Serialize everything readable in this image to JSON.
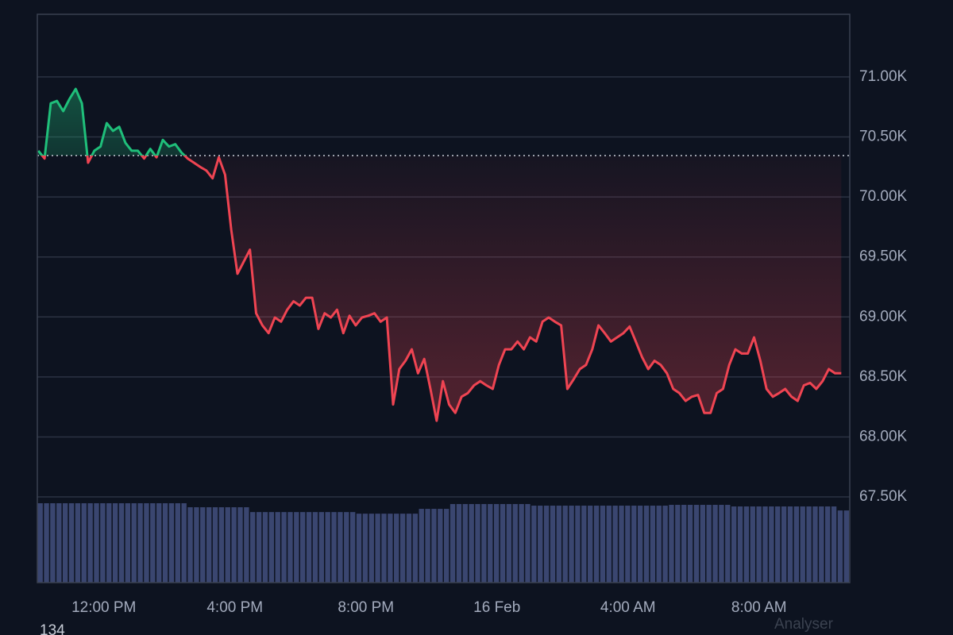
{
  "chart_data": {
    "type": "baseline-line",
    "x": [
      10,
      10.19,
      10.38,
      10.57,
      10.76,
      10.95,
      11.14,
      11.33,
      11.52,
      11.71,
      11.9,
      12.09,
      12.28,
      12.47,
      12.66,
      12.85,
      13.04,
      13.23,
      13.42,
      13.61,
      13.8,
      13.99,
      14.18,
      14.37,
      14.56,
      14.75,
      14.94,
      15.13,
      15.32,
      15.51,
      15.7,
      15.89,
      16.08,
      16.27,
      16.46,
      16.65,
      16.84,
      17.03,
      17.22,
      17.41,
      17.6,
      17.79,
      17.98,
      18.17,
      18.36,
      18.55,
      18.74,
      18.93,
      19.12,
      19.31,
      19.5,
      19.69,
      19.88,
      20.07,
      20.26,
      20.45,
      20.64,
      20.83,
      21.02,
      21.21,
      21.4,
      21.59,
      21.78,
      21.97,
      22.16,
      22.35,
      22.54,
      22.73,
      22.92,
      23.11,
      23.3,
      23.49,
      23.68,
      23.87,
      24.06,
      24.25,
      24.44,
      24.63,
      24.82,
      25.01,
      25.2,
      25.39,
      25.58,
      25.77,
      25.96,
      26.15,
      26.34,
      26.53,
      26.72,
      26.91,
      27.1,
      27.29,
      27.48,
      27.67,
      27.86,
      28.05,
      28.24,
      28.43,
      28.62,
      28.81,
      29.0,
      29.19,
      29.38,
      29.57,
      29.76,
      29.95,
      30.14,
      30.33,
      30.52,
      30.71,
      30.9,
      31.09,
      31.28,
      31.47,
      31.66,
      31.85,
      32.04,
      32.23,
      32.42,
      32.61,
      32.8,
      32.99,
      33.18,
      33.37,
      33.56,
      33.75,
      33.94,
      34.13,
      34.32,
      34.51
    ],
    "values": [
      70385,
      70320,
      70780,
      70800,
      70715,
      70815,
      70900,
      70780,
      70285,
      70385,
      70420,
      70615,
      70550,
      70585,
      70450,
      70385,
      70385,
      70320,
      70400,
      70330,
      70475,
      70420,
      70440,
      70370,
      70320,
      70285,
      70250,
      70220,
      70155,
      70330,
      70185,
      69725,
      69360,
      69460,
      69560,
      69030,
      68930,
      68865,
      68995,
      68960,
      69060,
      69130,
      69095,
      69160,
      69160,
      68900,
      69030,
      68995,
      69060,
      68865,
      69010,
      68930,
      68995,
      69010,
      69030,
      68960,
      68995,
      68270,
      68565,
      68635,
      68730,
      68530,
      68650,
      68400,
      68135,
      68465,
      68270,
      68200,
      68335,
      68365,
      68430,
      68465,
      68430,
      68400,
      68600,
      68730,
      68730,
      68795,
      68730,
      68830,
      68795,
      68960,
      68995,
      68960,
      68930,
      68400,
      68480,
      68565,
      68600,
      68730,
      68930,
      68865,
      68795,
      68830,
      68865,
      68920,
      68795,
      68665,
      68565,
      68635,
      68600,
      68530,
      68400,
      68365,
      68300,
      68335,
      68350,
      68200,
      68200,
      68365,
      68400,
      68600,
      68730,
      68695,
      68695,
      68830,
      68635,
      68400,
      68335,
      68365,
      68400,
      68335,
      68300,
      68430,
      68450,
      68400,
      68465,
      68565,
      68530,
      68530
    ],
    "volume": [
      99,
      99,
      99,
      99,
      99,
      99,
      99,
      99,
      99,
      99,
      99,
      99,
      99,
      99,
      99,
      99,
      99,
      99,
      99,
      99,
      99,
      99,
      99,
      99,
      94,
      94,
      94,
      94,
      94,
      94,
      94,
      94,
      94,
      94,
      88,
      88,
      88,
      88,
      88,
      88,
      88,
      88,
      88,
      88,
      88,
      88,
      88,
      88,
      88,
      88,
      88,
      86,
      86,
      86,
      86,
      86,
      86,
      86,
      86,
      86,
      86,
      92,
      92,
      92,
      92,
      92,
      98,
      98,
      98,
      98,
      98,
      98,
      98,
      98,
      98,
      98,
      98,
      98,
      98,
      96,
      96,
      96,
      96,
      96,
      96,
      96,
      96,
      96,
      96,
      96,
      96,
      96,
      96,
      96,
      96,
      96,
      96,
      96,
      96,
      96,
      96,
      97,
      97,
      97,
      97,
      97,
      97,
      97,
      97,
      97,
      97,
      95,
      95,
      95,
      95,
      95,
      95,
      95,
      95,
      95,
      95,
      95,
      95,
      95,
      95,
      95,
      95,
      95,
      90,
      90
    ],
    "baseline": 70345,
    "up_color": "#1fbf7a",
    "down_color": "#ef4452",
    "volume_color": "#3a4670",
    "xlim": [
      9.97,
      34.77
    ],
    "xticks": [
      {
        "value": 12,
        "label": "12:00 PM"
      },
      {
        "value": 16,
        "label": "4:00 PM"
      },
      {
        "value": 20,
        "label": "8:00 PM"
      },
      {
        "value": 24,
        "label": "16 Feb"
      },
      {
        "value": 28,
        "label": "4:00 AM"
      },
      {
        "value": 32,
        "label": "8:00 AM"
      }
    ],
    "ylim": [
      66786,
      71522
    ],
    "yticks": [
      {
        "value": 67500,
        "label": "67.50K"
      },
      {
        "value": 68000,
        "label": "68.00K"
      },
      {
        "value": 68500,
        "label": "68.50K"
      },
      {
        "value": 69000,
        "label": "69.00K"
      },
      {
        "value": 69500,
        "label": "69.50K"
      },
      {
        "value": 70000,
        "label": "70.00K"
      },
      {
        "value": 70500,
        "label": "70.50K"
      },
      {
        "value": 71000,
        "label": "71.00K"
      }
    ],
    "grid": true,
    "footer_left": "134",
    "footer_right": "Analyser"
  }
}
